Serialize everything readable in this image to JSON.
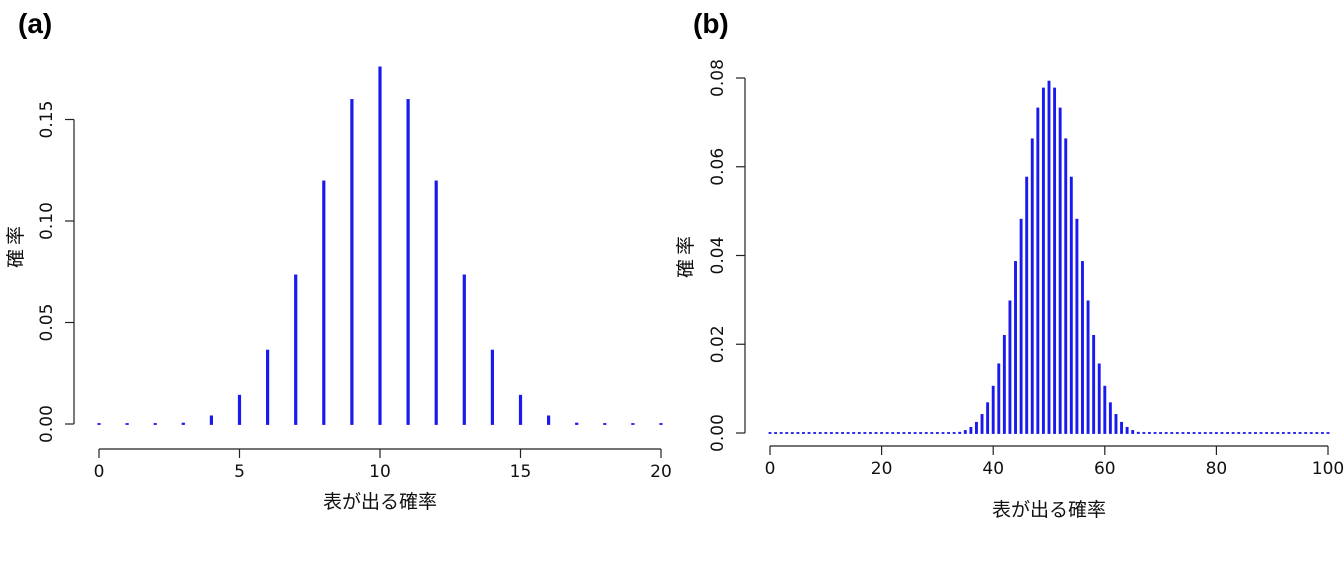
{
  "panels": {
    "a": {
      "label": "(a)"
    },
    "b": {
      "label": "(b)"
    }
  },
  "colors": {
    "bars": "#1a1aee",
    "axis": "#222222"
  },
  "chart_data": [
    {
      "type": "bar",
      "title": "",
      "xlabel": "表が出る確率",
      "ylabel": "確率",
      "xlim": [
        0,
        20
      ],
      "ylim": [
        0,
        0.176
      ],
      "xticks": [
        0,
        5,
        10,
        15,
        20
      ],
      "yticks": [
        0.0,
        0.05,
        0.1,
        0.15
      ],
      "ytick_labels": [
        "0.00",
        "0.05",
        "0.10",
        "0.15"
      ],
      "x": [
        0,
        1,
        2,
        3,
        4,
        5,
        6,
        7,
        8,
        9,
        10,
        11,
        12,
        13,
        14,
        15,
        16,
        17,
        18,
        19,
        20
      ],
      "values": [
        1e-06,
        1.9e-05,
        0.000181,
        0.001087,
        0.004621,
        0.014786,
        0.036964,
        0.073929,
        0.120134,
        0.160179,
        0.176197,
        0.160179,
        0.120134,
        0.073929,
        0.036964,
        0.014786,
        0.004621,
        0.001087,
        0.000181,
        1.9e-05,
        1e-06
      ]
    },
    {
      "type": "bar",
      "title": "",
      "xlabel": "表が出る確率",
      "ylabel": "確率",
      "xlim": [
        0,
        100
      ],
      "ylim": [
        0,
        0.08
      ],
      "xticks": [
        0,
        20,
        40,
        60,
        80,
        100
      ],
      "yticks": [
        0.0,
        0.02,
        0.04,
        0.06,
        0.08
      ],
      "ytick_labels": [
        "0.00",
        "0.02",
        "0.04",
        "0.06",
        "0.08"
      ],
      "x": [
        0,
        1,
        2,
        3,
        4,
        5,
        6,
        7,
        8,
        9,
        10,
        11,
        12,
        13,
        14,
        15,
        16,
        17,
        18,
        19,
        20,
        21,
        22,
        23,
        24,
        25,
        26,
        27,
        28,
        29,
        30,
        31,
        32,
        33,
        34,
        35,
        36,
        37,
        38,
        39,
        40,
        41,
        42,
        43,
        44,
        45,
        46,
        47,
        48,
        49,
        50,
        51,
        52,
        53,
        54,
        55,
        56,
        57,
        58,
        59,
        60,
        61,
        62,
        63,
        64,
        65,
        66,
        67,
        68,
        69,
        70,
        71,
        72,
        73,
        74,
        75,
        76,
        77,
        78,
        79,
        80,
        81,
        82,
        83,
        84,
        85,
        86,
        87,
        88,
        89,
        90,
        91,
        92,
        93,
        94,
        95,
        96,
        97,
        98,
        99,
        100
      ],
      "values": [
        0,
        0,
        0,
        0,
        0,
        0,
        0,
        0,
        0,
        0,
        0,
        0,
        0,
        0,
        0,
        0,
        0,
        0,
        0,
        0,
        0,
        0,
        0,
        0,
        0,
        0,
        0,
        0,
        1e-05,
        2e-05,
        2e-05,
        5e-05,
        0.00011,
        0.00023,
        0.00046,
        0.00086,
        0.00156,
        0.0027,
        0.00447,
        0.00711,
        0.01084,
        0.01587,
        0.02229,
        0.03007,
        0.03895,
        0.04847,
        0.05796,
        0.06659,
        0.07353,
        0.07803,
        0.07959,
        0.07803,
        0.07353,
        0.06659,
        0.05796,
        0.04847,
        0.03895,
        0.03007,
        0.02229,
        0.01587,
        0.01084,
        0.00711,
        0.00447,
        0.0027,
        0.00156,
        0.00086,
        0.00046,
        0.00023,
        0.00011,
        5e-05,
        2e-05,
        2e-05,
        1e-05,
        0,
        0,
        0,
        0,
        0,
        0,
        0,
        0,
        0,
        0,
        0,
        0,
        0,
        0,
        0,
        0,
        0,
        0,
        0,
        0,
        0,
        0,
        0,
        0,
        0,
        0,
        0,
        0
      ]
    }
  ]
}
